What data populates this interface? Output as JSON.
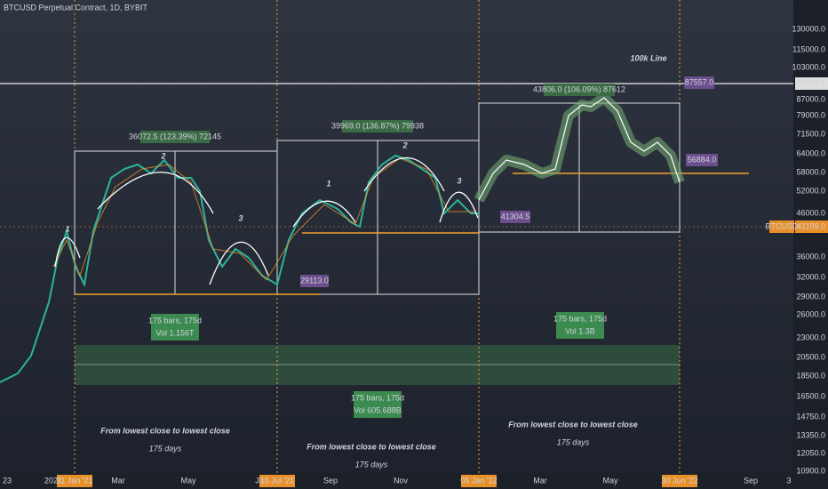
{
  "header": {
    "title": "BTCUSD Perpetual Contract, 1D, BYBIT"
  },
  "price_axis": {
    "labels": [
      "130000.0",
      "115000.0",
      "103000.0",
      "87000.0",
      "79000.0",
      "71500.0",
      "64000.0",
      "58000.0",
      "52000.0",
      "46000.0",
      "36000.0",
      "32000.0",
      "29000.0",
      "26000.0",
      "23000.0",
      "20500.0",
      "18500.0",
      "16500.0",
      "14750.0",
      "13350.0",
      "12050.0",
      "10900.0"
    ],
    "line_price": "94728.5",
    "symbol": "BTCUSD",
    "last_price": "41199.0"
  },
  "time_axis": {
    "labels": [
      "23",
      "2021",
      "Mar",
      "May",
      "Ju",
      "Sep",
      "Nov",
      "Mar",
      "May",
      "Sep",
      "3"
    ],
    "highlighted": [
      "21 Jan '21",
      "15 Jul '21",
      "05 Jan '22",
      "30 Jun '22"
    ]
  },
  "annotations": {
    "line_label": "100k Line",
    "measures": [
      "36072.5 (123.39%) 72145",
      "39969.0 (136.87%) 79938",
      "43806.0 (106.09%) 87612"
    ],
    "prices": [
      "87557.0",
      "56884.0",
      "41304.5",
      "29113.0"
    ],
    "waves": [
      [
        "1",
        "2",
        "3"
      ],
      [
        "1",
        "2",
        "3"
      ]
    ],
    "ranges": [
      {
        "bars": "175 bars, 175d",
        "vol": "Vol 1.156T"
      },
      {
        "bars": "175 bars, 175d",
        "vol": "Vol 605.688B"
      },
      {
        "bars": "175 bars, 175d",
        "vol": "Vol 1.3B"
      }
    ],
    "notes": [
      {
        "text": "From lowest close to lowest close",
        "days": "175 days"
      },
      {
        "text": "From lowest close to lowest close",
        "days": "175 days"
      },
      {
        "text": "From lowest close to lowest close",
        "days": "175 days"
      }
    ]
  }
}
